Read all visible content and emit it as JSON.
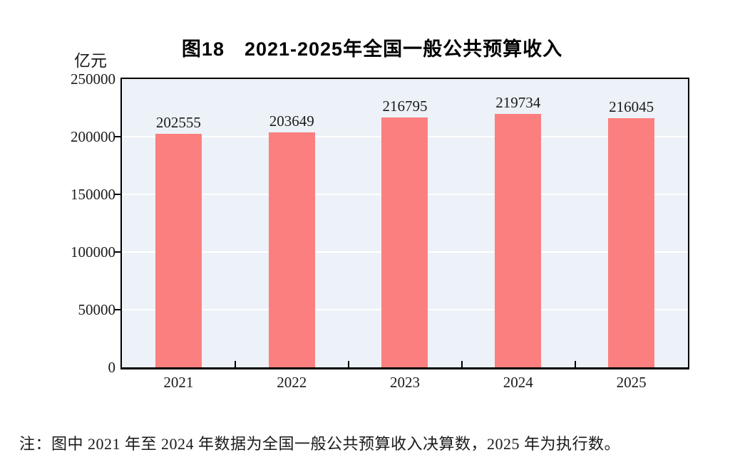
{
  "figure": {
    "title": "图18　2021-2025年全国一般公共预算收入",
    "note": "注：图中 2021 年至 2024 年数据为全国一般公共预算收入决算数，2025 年为执行数。"
  },
  "chart_data": {
    "type": "bar",
    "title": "图18　2021-2025年全国一般公共预算收入",
    "unit_label": "亿元",
    "categories": [
      "2021",
      "2022",
      "2023",
      "2024",
      "2025"
    ],
    "values": [
      202555,
      203649,
      216795,
      219734,
      216045
    ],
    "ylim": [
      0,
      250000
    ],
    "ytick_interval": 50000,
    "yticks": [
      "250000",
      "200000",
      "150000",
      "100000",
      "50000",
      "0"
    ],
    "grid": true,
    "legend": "none",
    "bar_color": "#FC7F7F",
    "plot_bg": "#ECF2F7",
    "gridline_color": "#FFFFFF",
    "axis_color": "#000000",
    "note": "注：图中 2021 年至 2024 年数据为全国一般公共预算收入决算数，2025 年为执行数。"
  }
}
